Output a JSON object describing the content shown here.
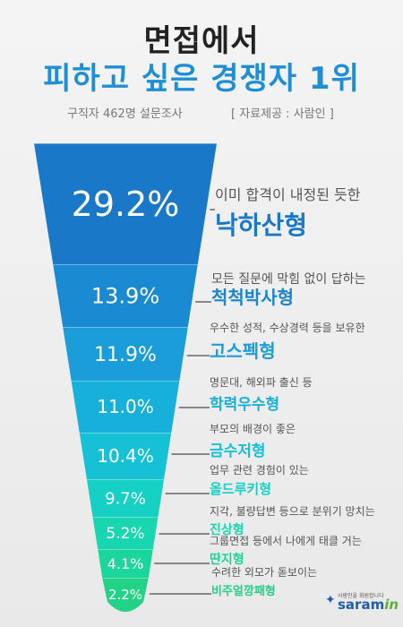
{
  "title_line1": "면접에서",
  "title_line2": "피하고 싶은 경쟁자 1위",
  "subtitle": "구직자 462명 설문조사",
  "source": "[ 자료제공 : 사람인 ]",
  "logo": {
    "tagline": "사람인을 회원합니다",
    "brand_main": "saram",
    "brand_accent": "in"
  },
  "chart_data": {
    "type": "funnel",
    "unit": "%",
    "items": [
      {
        "value": 29.2,
        "label": "29.2%",
        "desc": "이미 합격이 내정된 듯한",
        "name": "낙하산형"
      },
      {
        "value": 13.9,
        "label": "13.9%",
        "desc": "모든 질문에 막힘 없이 답하는",
        "name": "척척박사형"
      },
      {
        "value": 11.9,
        "label": "11.9%",
        "desc": "우수한 성적, 수상경력 등을 보유한",
        "name": "고스펙형"
      },
      {
        "value": 11.0,
        "label": "11.0%",
        "desc": "명문대, 해외파 출신 등",
        "name": "학력우수형"
      },
      {
        "value": 10.4,
        "label": "10.4%",
        "desc": "부모의 배경이 좋은",
        "name": "금수저형"
      },
      {
        "value": 9.7,
        "label": "9.7%",
        "desc": "업무 관련 경험이 있는",
        "name": "올드루키형"
      },
      {
        "value": 5.2,
        "label": "5.2%",
        "desc": "지각, 불량답변 등으로 분위기 망치는",
        "name": "진상형"
      },
      {
        "value": 4.1,
        "label": "4.1%",
        "desc": "그룹면접 등에서 나에게 태클 거는",
        "name": "딴지형"
      },
      {
        "value": 2.2,
        "label": "2.2%",
        "desc": "수려한 외모가 돋보이는",
        "name": "비주얼깡패형"
      }
    ],
    "colors": [
      "#1a78c8",
      "#1a8ad3",
      "#1a9dd8",
      "#17b0da",
      "#16c1d6",
      "#17d0c4",
      "#18d6b0",
      "#1bd69a",
      "#22d286"
    ]
  }
}
